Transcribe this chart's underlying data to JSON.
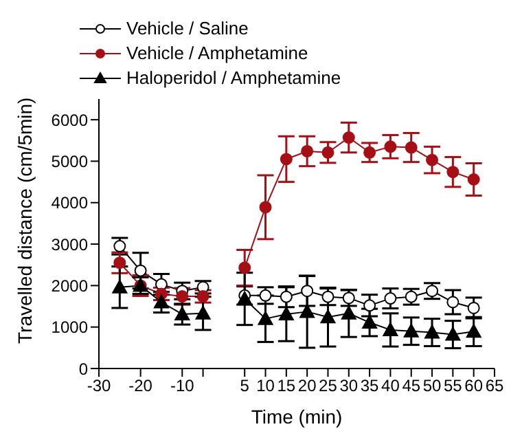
{
  "chart_data": {
    "type": "line",
    "xlabel": "Time (min)",
    "ylabel": "Travelled distance (cm/5min)",
    "x": [
      -25,
      -20,
      -15,
      -10,
      -5,
      null,
      5,
      10,
      15,
      20,
      25,
      30,
      35,
      40,
      45,
      50,
      55,
      60
    ],
    "series": [
      {
        "name": "Vehicle / Saline",
        "color": "#000000",
        "marker": "circle",
        "values": [
          2950,
          2360,
          2030,
          1870,
          1960,
          null,
          1760,
          1760,
          1730,
          1870,
          1730,
          1700,
          1520,
          1690,
          1730,
          1870,
          1600,
          1460
        ],
        "errors": [
          200,
          430,
          250,
          200,
          150,
          null,
          220,
          200,
          250,
          360,
          200,
          190,
          260,
          240,
          190,
          190,
          290,
          250
        ]
      },
      {
        "name": "Vehicle / Amphetamine",
        "color": "#a50f15",
        "marker": "circle",
        "values": [
          2550,
          2000,
          1800,
          1740,
          1740,
          null,
          2430,
          3890,
          5050,
          5240,
          5210,
          5570,
          5210,
          5350,
          5330,
          5030,
          4740,
          4560
        ],
        "errors": [
          250,
          250,
          150,
          200,
          150,
          null,
          430,
          770,
          550,
          360,
          250,
          360,
          230,
          280,
          350,
          320,
          360,
          390
        ]
      },
      {
        "name": "Haloperidol / Amphetamine",
        "color": "#000000",
        "marker": "triangle",
        "values": [
          1960,
          2000,
          1600,
          1310,
          1330,
          null,
          1680,
          1200,
          1310,
          1370,
          1240,
          1330,
          1110,
          930,
          900,
          870,
          820,
          890
        ],
        "errors": [
          500,
          200,
          250,
          250,
          400,
          null,
          630,
          560,
          650,
          870,
          710,
          570,
          330,
          400,
          330,
          330,
          330,
          350
        ]
      }
    ],
    "xlim": [
      -30,
      65
    ],
    "xticks": [
      -30,
      -20,
      -10,
      {
        "value": -5,
        "label": null
      },
      5,
      10,
      15,
      20,
      25,
      30,
      35,
      40,
      45,
      50,
      55,
      60,
      65
    ],
    "ylim": [
      0,
      6500
    ],
    "yticks": [
      0,
      1000,
      2000,
      3000,
      4000,
      5000,
      6000
    ],
    "grid": false,
    "legend": "top left",
    "line_style": "solid"
  }
}
